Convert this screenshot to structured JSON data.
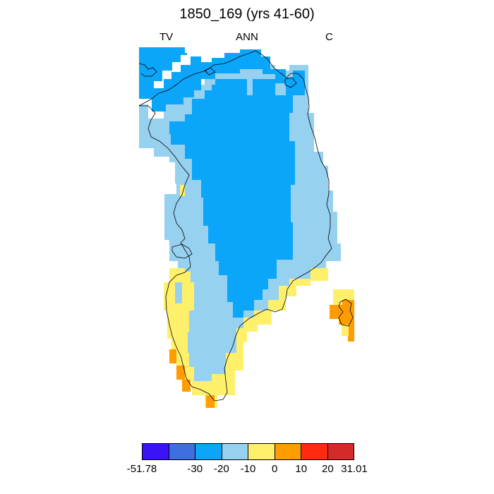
{
  "title": "1850_169 (yrs 41-60)",
  "subtitles": {
    "left": "TV",
    "center": "ANN",
    "right": "C"
  },
  "legend": {
    "colors": [
      "#3a14f5",
      "#3f6ee0",
      "#0ba6fa",
      "#97d1f0",
      "#fff06c",
      "#ff9d00",
      "#ff2a10",
      "#d42a2a"
    ],
    "tick_labels": [
      "-51.78",
      "-30",
      "-20",
      "-10",
      "0",
      "10",
      "20",
      "31.01"
    ]
  },
  "map": {
    "region": "Greenland",
    "variable_bins": {
      "deep_blue": "-30 to -20",
      "light_blue": "-20 to -10",
      "yellow": "-10 to 0",
      "orange": "0 to 10"
    }
  }
}
